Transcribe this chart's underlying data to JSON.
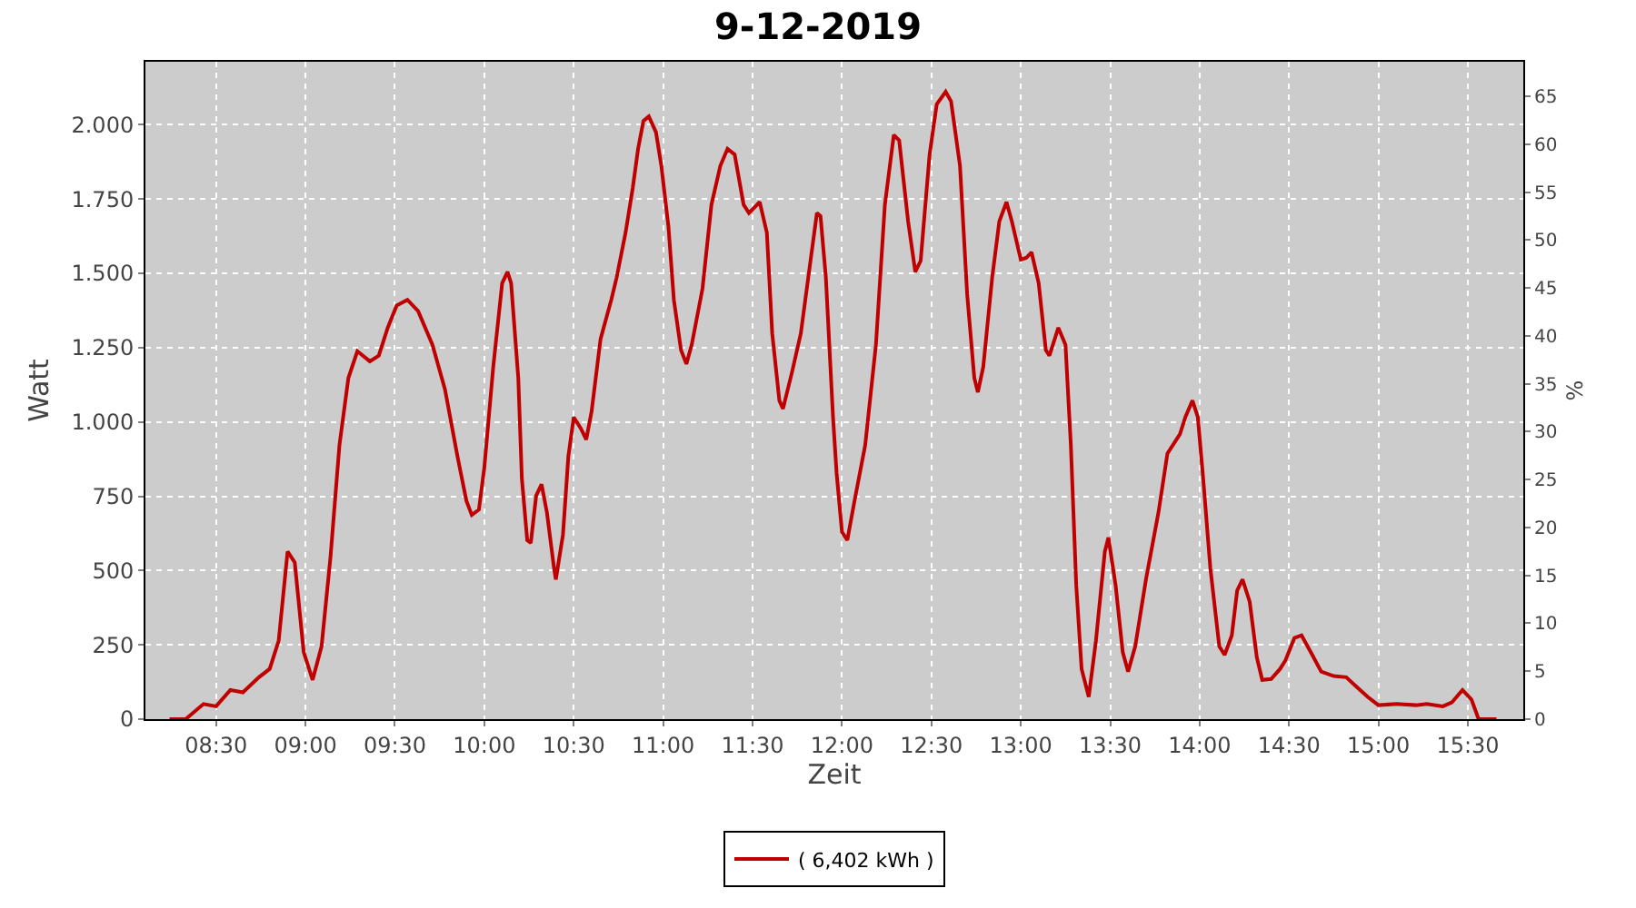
{
  "chart_data": {
    "type": "line",
    "title": "9-12-2019",
    "xlabel": "Zeit",
    "ylabel": "Watt",
    "y2label": "%",
    "xlim": [
      8.105,
      15.81
    ],
    "xticks": [
      {
        "value": 8.5,
        "label": "08:30"
      },
      {
        "value": 9,
        "label": "09:00"
      },
      {
        "value": 9.5,
        "label": "09:30"
      },
      {
        "value": 10,
        "label": "10:00"
      },
      {
        "value": 10.5,
        "label": "10:30"
      },
      {
        "value": 11,
        "label": "11:00"
      },
      {
        "value": 11.5,
        "label": "11:30"
      },
      {
        "value": 12,
        "label": "12:00"
      },
      {
        "value": 12.5,
        "label": "12:30"
      },
      {
        "value": 13,
        "label": "13:00"
      },
      {
        "value": 13.5,
        "label": "13:30"
      },
      {
        "value": 14,
        "label": "14:00"
      },
      {
        "value": 14.5,
        "label": "14:30"
      },
      {
        "value": 15,
        "label": "15:00"
      },
      {
        "value": 15.5,
        "label": "15:30"
      }
    ],
    "ylim": [
      0,
      2212
    ],
    "yticks": [
      0,
      250,
      500,
      750,
      {
        "value": 1000,
        "label": "1.000"
      },
      {
        "value": 1250,
        "label": "1.250"
      },
      {
        "value": 1500,
        "label": "1.500"
      },
      {
        "value": 1750,
        "label": "1.750"
      },
      {
        "value": 2000,
        "label": "2.000"
      }
    ],
    "y2lim": [
      0,
      68.6
    ],
    "y2ticks": [
      0,
      5,
      10,
      15,
      20,
      25,
      30,
      35,
      40,
      45,
      50,
      55,
      60,
      65
    ],
    "grid": true,
    "legend": "bottom",
    "marker": "none",
    "line_style": "solid",
    "series": [
      {
        "name": "( 6,402 kWh )",
        "color": "#c00000",
        "x": [
          8.24,
          8.33,
          8.43,
          8.5,
          8.58,
          8.65,
          8.74,
          8.8,
          8.85,
          8.9,
          8.94,
          8.99,
          9.04,
          9.09,
          9.14,
          9.19,
          9.24,
          9.29,
          9.36,
          9.41,
          9.46,
          9.51,
          9.57,
          9.63,
          9.71,
          9.78,
          9.85,
          9.9,
          9.93,
          9.97,
          10.0,
          10.05,
          10.1,
          10.13,
          10.15,
          10.19,
          10.21,
          10.24,
          10.26,
          10.29,
          10.32,
          10.35,
          10.39,
          10.4,
          10.44,
          10.47,
          10.5,
          10.54,
          10.57,
          10.6,
          10.65,
          10.71,
          10.74,
          10.79,
          10.83,
          10.86,
          10.89,
          10.92,
          10.96,
          10.99,
          11.03,
          11.06,
          11.1,
          11.13,
          11.16,
          11.22,
          11.27,
          11.32,
          11.36,
          11.4,
          11.45,
          11.48,
          11.54,
          11.58,
          11.61,
          11.65,
          11.67,
          11.72,
          11.77,
          11.82,
          11.86,
          11.88,
          11.91,
          11.95,
          11.97,
          12.0,
          12.03,
          12.07,
          12.13,
          12.19,
          12.24,
          12.29,
          12.32,
          12.37,
          12.41,
          12.44,
          12.49,
          12.53,
          12.58,
          12.61,
          12.66,
          12.7,
          12.74,
          12.76,
          12.79,
          12.84,
          12.88,
          12.92,
          12.95,
          13.0,
          13.03,
          13.06,
          13.1,
          13.14,
          13.16,
          13.21,
          13.25,
          13.28,
          13.31,
          13.34,
          13.38,
          13.42,
          13.47,
          13.49,
          13.53,
          13.57,
          13.6,
          13.64,
          13.7,
          13.77,
          13.82,
          13.89,
          13.92,
          13.96,
          13.99,
          14.02,
          14.06,
          14.11,
          14.14,
          14.18,
          14.21,
          14.24,
          14.28,
          14.32,
          14.35,
          14.4,
          14.45,
          14.48,
          14.53,
          14.57,
          14.63,
          14.68,
          14.75,
          14.82,
          14.87,
          14.94,
          15.0,
          15.1,
          15.21,
          15.27,
          15.36,
          15.41,
          15.47,
          15.52,
          15.56,
          15.66
        ],
        "values": [
          0,
          0,
          51,
          43,
          98,
          90,
          141,
          169,
          263,
          564,
          527,
          226,
          132,
          245,
          546,
          922,
          1148,
          1238,
          1204,
          1223,
          1317,
          1392,
          1411,
          1373,
          1260,
          1110,
          884,
          734,
          687,
          705,
          846,
          1185,
          1467,
          1505,
          1467,
          1148,
          809,
          602,
          593,
          752,
          790,
          696,
          508,
          470,
          621,
          884,
          1016,
          978,
          941,
          1035,
          1279,
          1411,
          1486,
          1637,
          1787,
          1919,
          2013,
          2028,
          1975,
          1862,
          1655,
          1411,
          1242,
          1195,
          1260,
          1448,
          1731,
          1862,
          1919,
          1900,
          1731,
          1703,
          1740,
          1637,
          1298,
          1072,
          1044,
          1166,
          1298,
          1524,
          1703,
          1693,
          1486,
          1016,
          828,
          630,
          602,
          734,
          922,
          1260,
          1731,
          1966,
          1947,
          1675,
          1505,
          1542,
          1900,
          2069,
          2111,
          2079,
          1862,
          1430,
          1148,
          1100,
          1185,
          1486,
          1675,
          1740,
          1675,
          1546,
          1552,
          1571,
          1467,
          1242,
          1223,
          1317,
          1260,
          922,
          451,
          169,
          75,
          263,
          564,
          611,
          451,
          226,
          160,
          245,
          470,
          696,
          894,
          959,
          1016,
          1072,
          1016,
          809,
          508,
          245,
          216,
          282,
          433,
          470,
          395,
          207,
          132,
          135,
          169,
          198,
          273,
          282,
          216,
          160,
          145,
          141,
          113,
          75,
          47,
          51,
          47,
          51,
          43,
          56,
          98,
          66,
          0,
          0
        ]
      }
    ]
  }
}
